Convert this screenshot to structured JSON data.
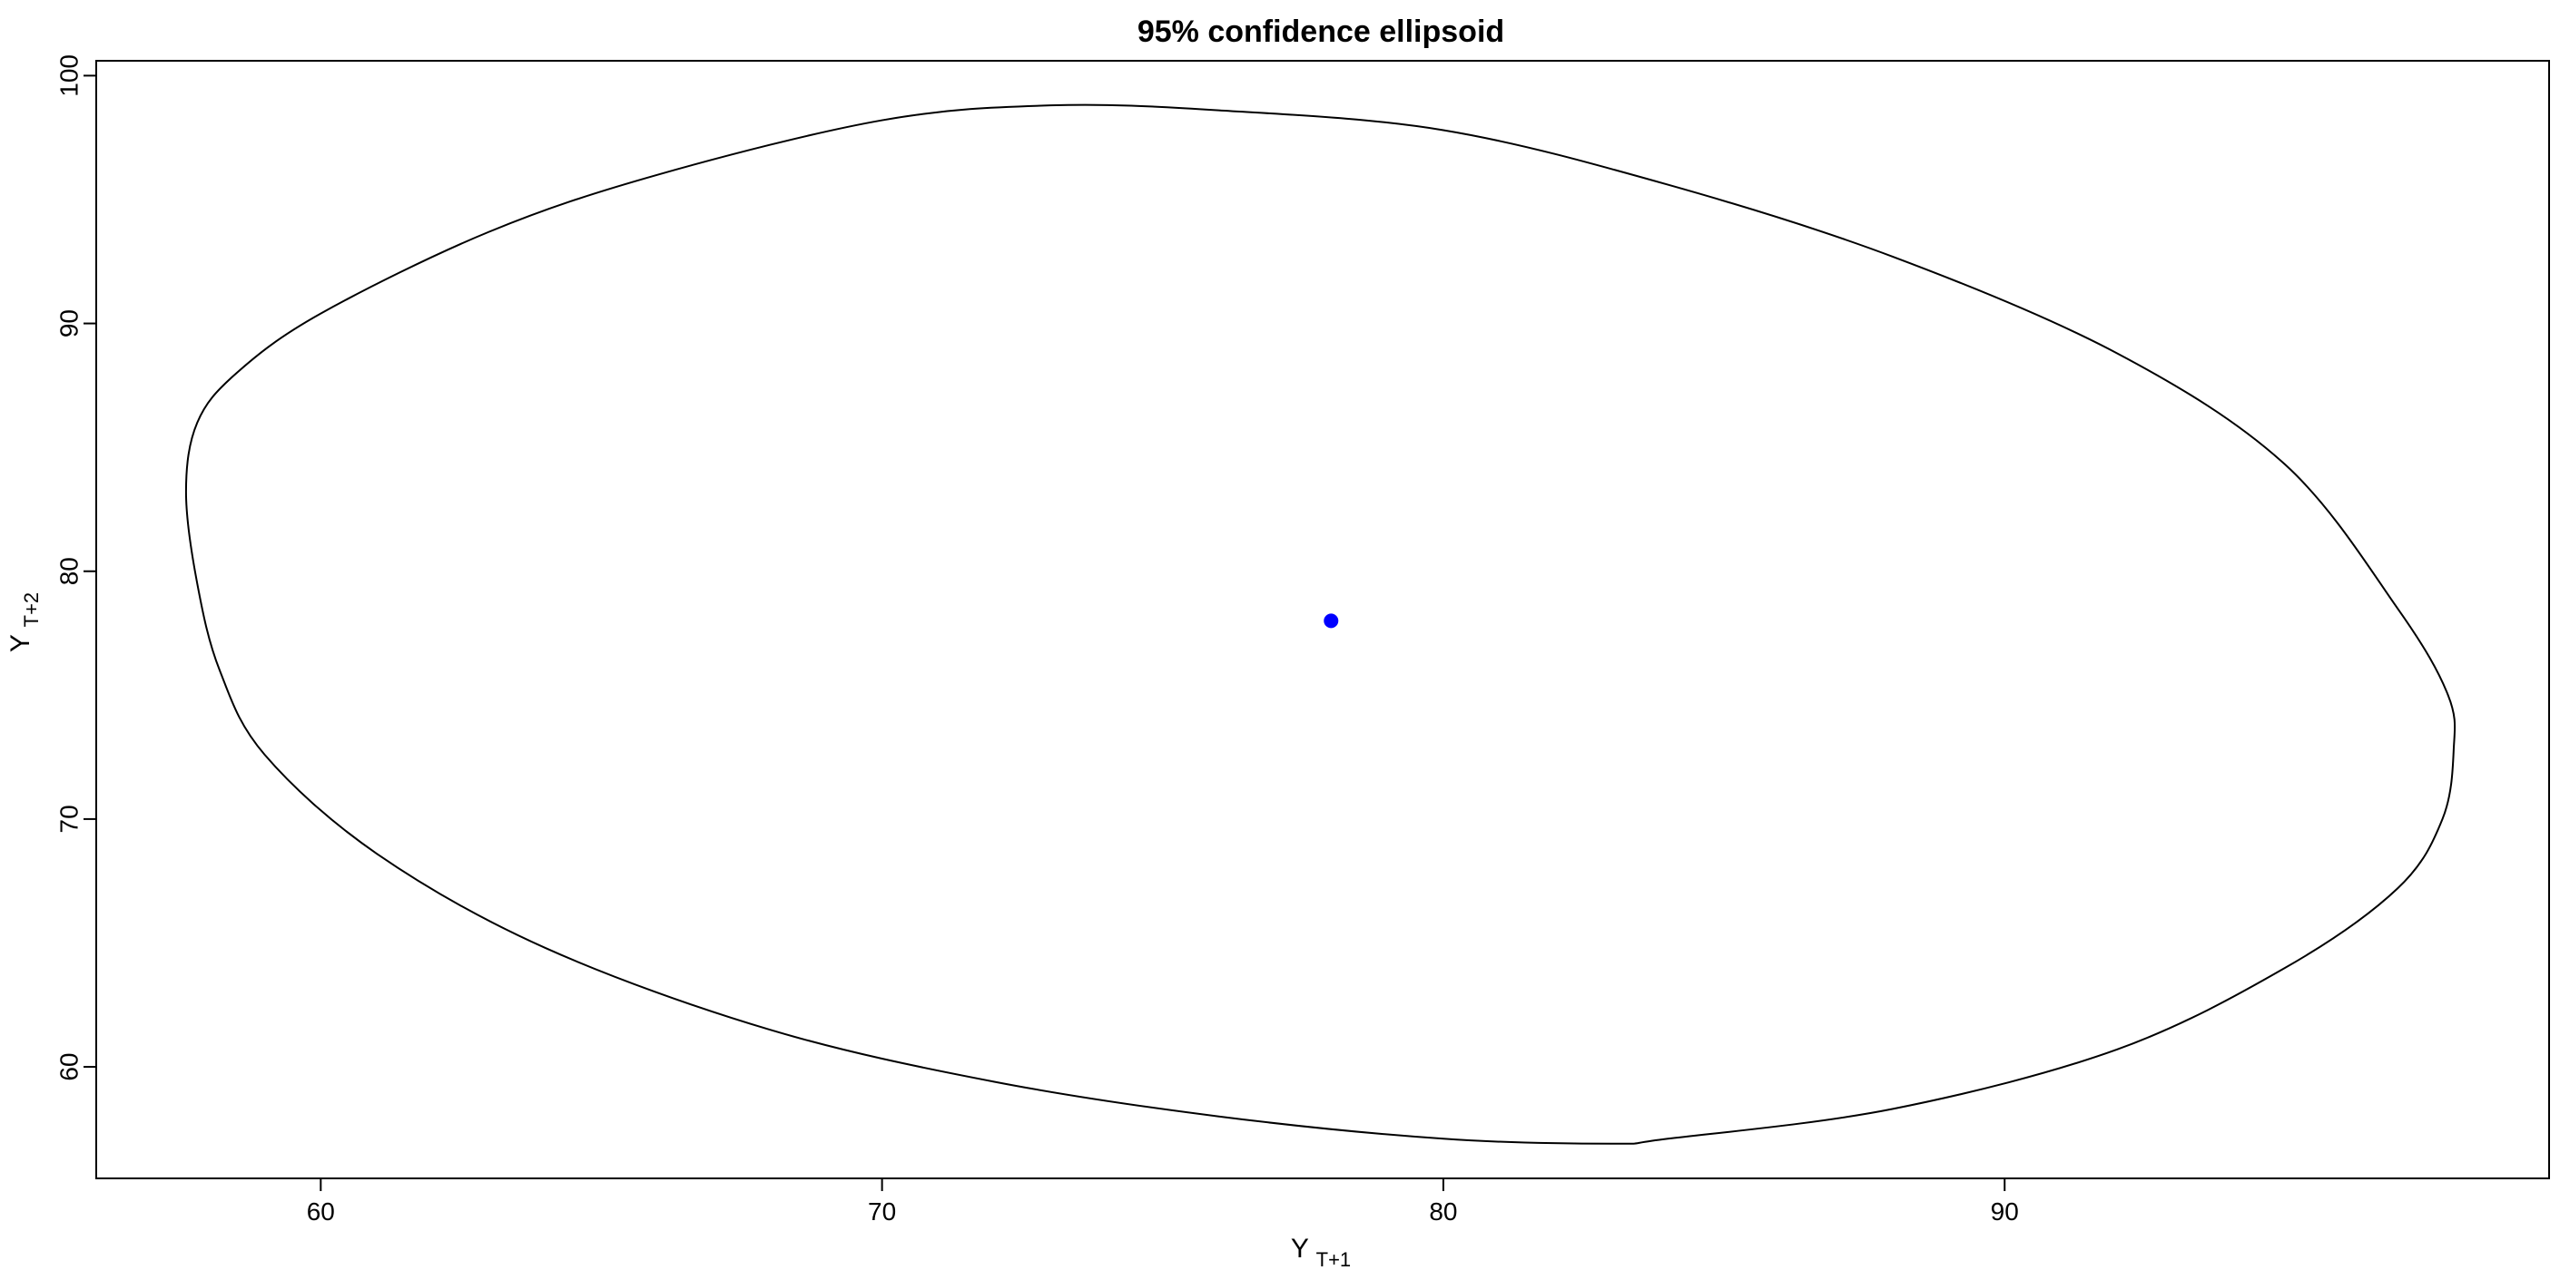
{
  "chart_data": {
    "type": "scatter",
    "title": "95% confidence ellipsoid",
    "xlabel": {
      "base": "Y",
      "subscript": "T+1"
    },
    "ylabel": {
      "base": "Y",
      "subscript": "T+2"
    },
    "xlim": [
      56,
      99.7
    ],
    "ylim": [
      55.5,
      100.6
    ],
    "xticks": [
      60,
      70,
      80,
      90
    ],
    "yticks": [
      60,
      70,
      80,
      90,
      100
    ],
    "grid": false,
    "legend": "none",
    "series": [
      {
        "kind": "point",
        "points": [
          {
            "x": 78,
            "y": 78
          }
        ],
        "color": "#0000ff"
      },
      {
        "kind": "ellipse",
        "center": [
          78,
          78
        ],
        "points": [
          {
            "x": 57.6,
            "y": 83.2
          },
          {
            "x": 57.8,
            "y": 86
          },
          {
            "x": 58.5,
            "y": 88
          },
          {
            "x": 60,
            "y": 90.4
          },
          {
            "x": 63,
            "y": 93.7
          },
          {
            "x": 66,
            "y": 96
          },
          {
            "x": 70,
            "y": 98.2
          },
          {
            "x": 73,
            "y": 98.8
          },
          {
            "x": 76,
            "y": 98.6
          },
          {
            "x": 80,
            "y": 97.8
          },
          {
            "x": 84,
            "y": 95.6
          },
          {
            "x": 88,
            "y": 92.7
          },
          {
            "x": 92,
            "y": 88.8
          },
          {
            "x": 95,
            "y": 84.3
          },
          {
            "x": 97,
            "y": 78.5
          },
          {
            "x": 97.9,
            "y": 75
          },
          {
            "x": 98,
            "y": 72.8
          },
          {
            "x": 97.8,
            "y": 70
          },
          {
            "x": 97,
            "y": 67.2
          },
          {
            "x": 95,
            "y": 64
          },
          {
            "x": 92,
            "y": 60.7
          },
          {
            "x": 88,
            "y": 58.3
          },
          {
            "x": 84,
            "y": 57.1
          },
          {
            "x": 83,
            "y": 56.9
          },
          {
            "x": 80,
            "y": 57.1
          },
          {
            "x": 76,
            "y": 58
          },
          {
            "x": 72,
            "y": 59.4
          },
          {
            "x": 68,
            "y": 61.5
          },
          {
            "x": 64,
            "y": 64.8
          },
          {
            "x": 61,
            "y": 68.6
          },
          {
            "x": 59,
            "y": 72.6
          },
          {
            "x": 58.2,
            "y": 76
          },
          {
            "x": 57.8,
            "y": 79.5
          }
        ],
        "color": "#000000"
      }
    ]
  },
  "style": {
    "point_color": "#0000ff",
    "line_color": "#000000",
    "frame_color": "#000000"
  }
}
